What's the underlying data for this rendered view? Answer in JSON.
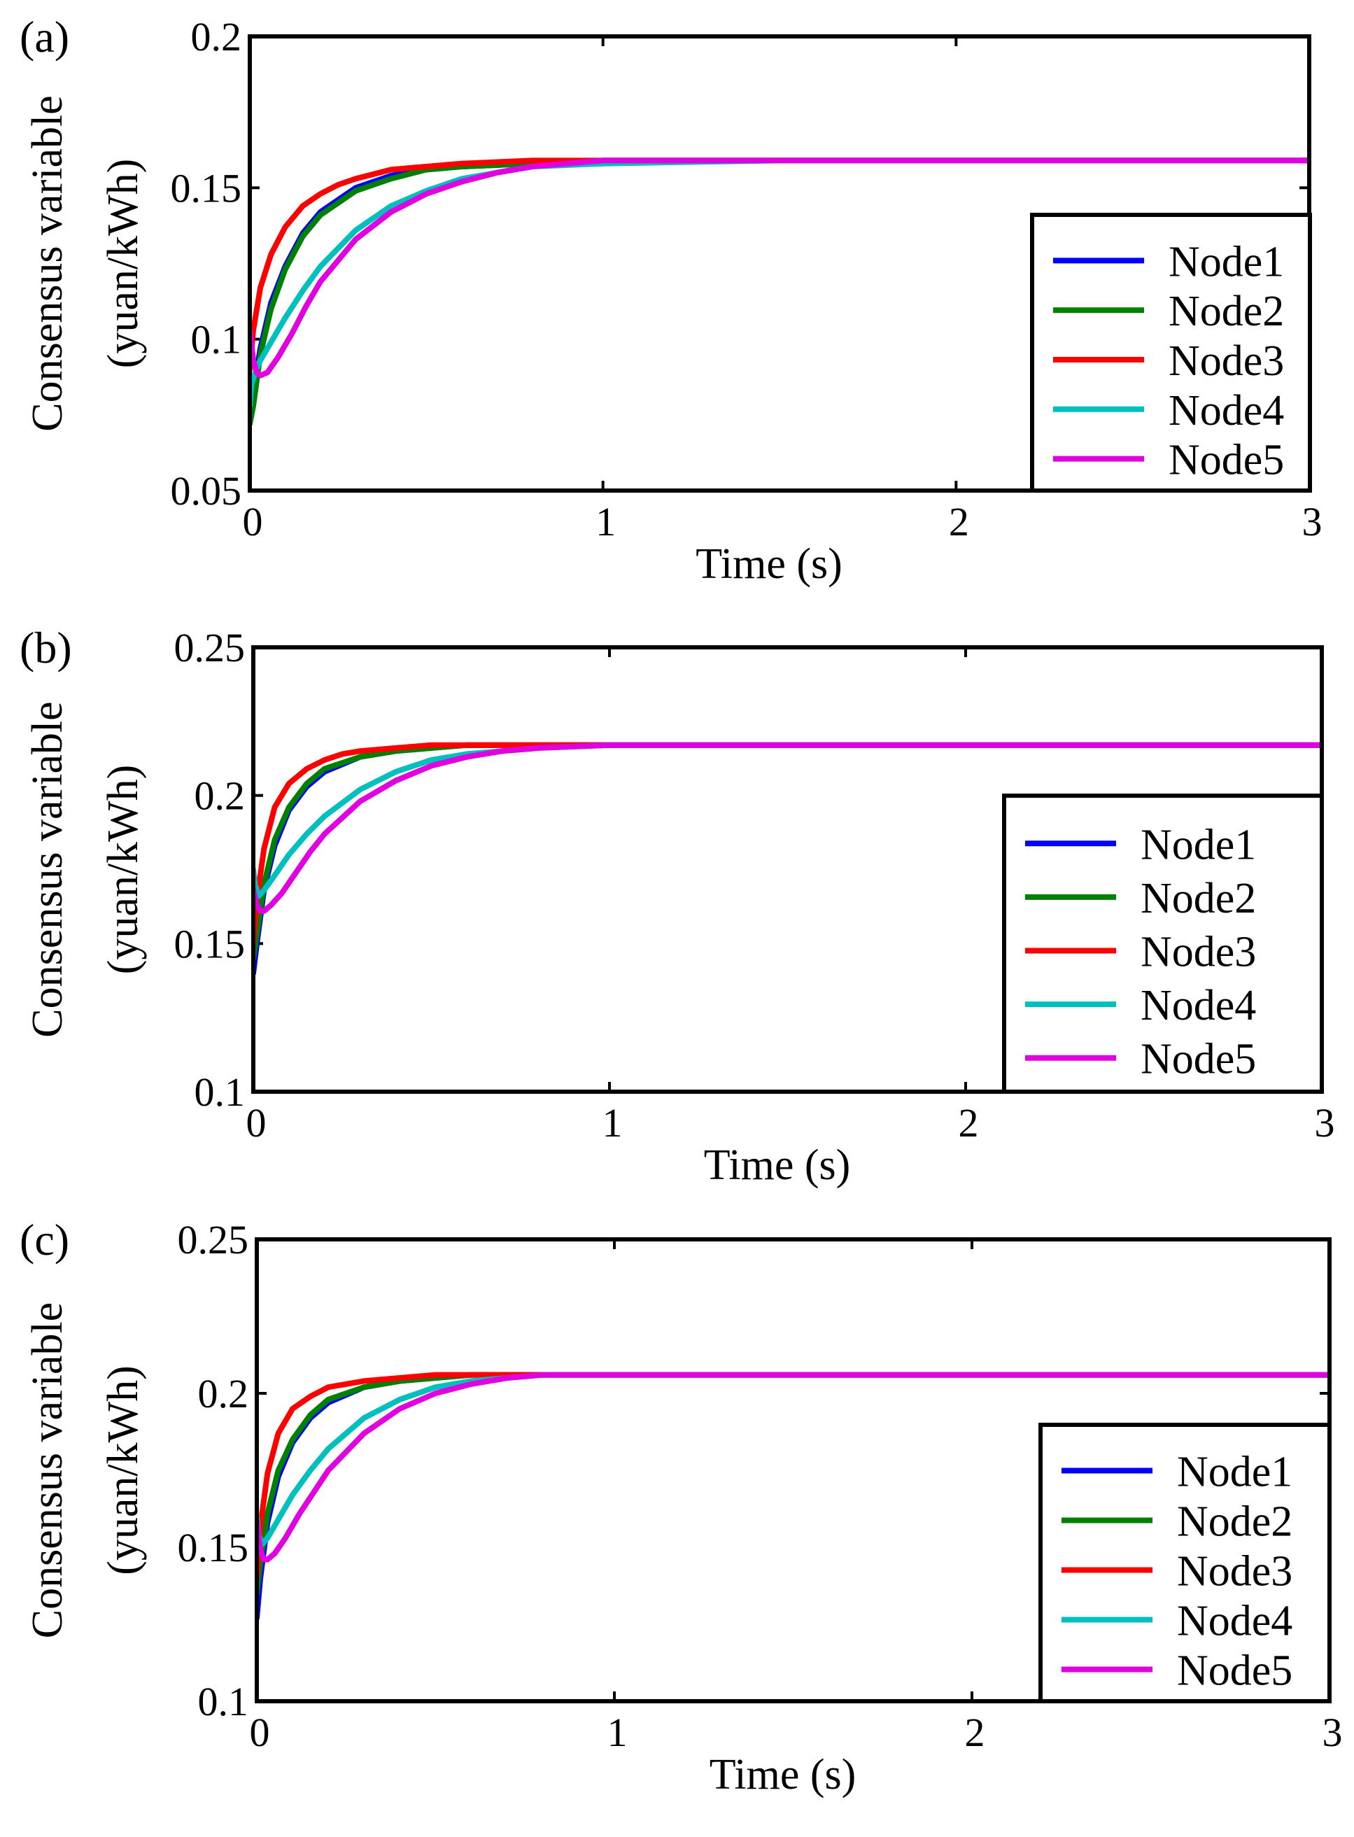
{
  "chart_data": [
    {
      "type": "line",
      "panel_label": "(a)",
      "xlabel": "Time (s)",
      "ylabel_lines": [
        "Consensus variable",
        "(yuan/kWh)"
      ],
      "xlim": [
        0,
        3
      ],
      "ylim": [
        0.05,
        0.2
      ],
      "xticks": [
        0,
        1,
        2,
        3
      ],
      "xtick_labels": [
        "0",
        "1",
        "2",
        "3"
      ],
      "yticks": [
        0.05,
        0.1,
        0.15,
        0.2
      ],
      "ytick_labels": [
        "0.05",
        "0.1",
        "0.15",
        "0.2"
      ],
      "legend_position": "lower-right",
      "series": [
        {
          "name": "Node1",
          "color": "#0000ff",
          "x": [
            0,
            0.01,
            0.03,
            0.06,
            0.1,
            0.15,
            0.2,
            0.3,
            0.4,
            0.5,
            0.6,
            0.8,
            1.0,
            1.5,
            2.0,
            2.5,
            3.0
          ],
          "y": [
            0.077,
            0.083,
            0.097,
            0.112,
            0.124,
            0.135,
            0.142,
            0.15,
            0.154,
            0.156,
            0.157,
            0.158,
            0.159,
            0.159,
            0.159,
            0.159,
            0.159
          ]
        },
        {
          "name": "Node2",
          "color": "#008000",
          "x": [
            0,
            0.01,
            0.03,
            0.06,
            0.1,
            0.15,
            0.2,
            0.3,
            0.4,
            0.5,
            0.6,
            0.8,
            1.0,
            1.5,
            2.0,
            2.5,
            3.0
          ],
          "y": [
            0.072,
            0.078,
            0.095,
            0.11,
            0.123,
            0.134,
            0.141,
            0.149,
            0.153,
            0.156,
            0.157,
            0.158,
            0.159,
            0.159,
            0.159,
            0.159,
            0.159
          ]
        },
        {
          "name": "Node3",
          "color": "#ff0000",
          "x": [
            0,
            0.01,
            0.03,
            0.06,
            0.1,
            0.15,
            0.2,
            0.25,
            0.3,
            0.4,
            0.5,
            0.6,
            0.8,
            1.0,
            1.5,
            2.0,
            2.5,
            3.0
          ],
          "y": [
            0.09,
            0.103,
            0.117,
            0.128,
            0.137,
            0.144,
            0.148,
            0.151,
            0.153,
            0.156,
            0.157,
            0.158,
            0.159,
            0.159,
            0.159,
            0.159,
            0.159,
            0.159
          ]
        },
        {
          "name": "Node4",
          "color": "#00bfbf",
          "x": [
            0,
            0.005,
            0.015,
            0.03,
            0.06,
            0.1,
            0.15,
            0.2,
            0.3,
            0.4,
            0.5,
            0.6,
            0.7,
            0.8,
            1.0,
            1.5,
            2.0,
            2.5,
            3.0
          ],
          "y": [
            0.078,
            0.085,
            0.089,
            0.093,
            0.099,
            0.107,
            0.116,
            0.124,
            0.136,
            0.144,
            0.149,
            0.153,
            0.155,
            0.157,
            0.158,
            0.159,
            0.159,
            0.159,
            0.159
          ]
        },
        {
          "name": "Node5",
          "color": "#e000e0",
          "x": [
            0,
            0.01,
            0.02,
            0.03,
            0.05,
            0.08,
            0.12,
            0.16,
            0.2,
            0.3,
            0.4,
            0.5,
            0.6,
            0.7,
            0.8,
            1.0,
            1.5,
            2.0,
            2.5,
            3.0
          ],
          "y": [
            0.103,
            0.093,
            0.089,
            0.088,
            0.089,
            0.094,
            0.102,
            0.111,
            0.119,
            0.133,
            0.142,
            0.148,
            0.152,
            0.155,
            0.157,
            0.159,
            0.159,
            0.159,
            0.159,
            0.159
          ]
        }
      ]
    },
    {
      "type": "line",
      "panel_label": "(b)",
      "xlabel": "Time (s)",
      "ylabel_lines": [
        "Consensus variable",
        "(yuan/kWh)"
      ],
      "xlim": [
        0,
        3
      ],
      "ylim": [
        0.1,
        0.25
      ],
      "xticks": [
        0,
        1,
        2,
        3
      ],
      "xtick_labels": [
        "0",
        "1",
        "2",
        "3"
      ],
      "yticks": [
        0.1,
        0.15,
        0.2,
        0.25
      ],
      "ytick_labels": [
        "0.1",
        "0.15",
        "0.2",
        "0.25"
      ],
      "legend_position": "lower-right",
      "series": [
        {
          "name": "Node1",
          "color": "#0000ff",
          "x": [
            0,
            0.01,
            0.03,
            0.06,
            0.1,
            0.15,
            0.2,
            0.3,
            0.4,
            0.5,
            0.6,
            0.8,
            1.0,
            1.5,
            2.0,
            2.5,
            3.0
          ],
          "y": [
            0.14,
            0.15,
            0.168,
            0.183,
            0.195,
            0.203,
            0.208,
            0.213,
            0.215,
            0.216,
            0.217,
            0.217,
            0.217,
            0.217,
            0.217,
            0.217,
            0.217
          ]
        },
        {
          "name": "Node2",
          "color": "#008000",
          "x": [
            0,
            0.01,
            0.03,
            0.06,
            0.1,
            0.15,
            0.2,
            0.3,
            0.4,
            0.5,
            0.6,
            0.8,
            1.0,
            1.5,
            2.0,
            2.5,
            3.0
          ],
          "y": [
            0.145,
            0.153,
            0.17,
            0.185,
            0.196,
            0.204,
            0.209,
            0.213,
            0.215,
            0.216,
            0.217,
            0.217,
            0.217,
            0.217,
            0.217,
            0.217,
            0.217
          ]
        },
        {
          "name": "Node3",
          "color": "#ff0000",
          "x": [
            0,
            0.01,
            0.03,
            0.06,
            0.1,
            0.15,
            0.2,
            0.25,
            0.3,
            0.4,
            0.5,
            0.6,
            0.8,
            1.0,
            1.5,
            2.0,
            2.5,
            3.0
          ],
          "y": [
            0.15,
            0.165,
            0.182,
            0.196,
            0.204,
            0.209,
            0.212,
            0.214,
            0.215,
            0.216,
            0.217,
            0.217,
            0.217,
            0.217,
            0.217,
            0.217,
            0.217,
            0.217
          ]
        },
        {
          "name": "Node4",
          "color": "#00bfbf",
          "x": [
            0,
            0.005,
            0.015,
            0.03,
            0.06,
            0.1,
            0.15,
            0.2,
            0.3,
            0.4,
            0.5,
            0.6,
            0.7,
            0.8,
            1.0,
            1.5,
            2.0,
            2.5,
            3.0
          ],
          "y": [
            0.175,
            0.17,
            0.166,
            0.168,
            0.173,
            0.18,
            0.187,
            0.193,
            0.202,
            0.208,
            0.212,
            0.214,
            0.215,
            0.216,
            0.217,
            0.217,
            0.217,
            0.217,
            0.217
          ]
        },
        {
          "name": "Node5",
          "color": "#e000e0",
          "x": [
            0,
            0.01,
            0.02,
            0.03,
            0.05,
            0.08,
            0.12,
            0.16,
            0.2,
            0.3,
            0.4,
            0.5,
            0.6,
            0.7,
            0.8,
            1.0,
            1.5,
            2.0,
            2.5,
            3.0
          ],
          "y": [
            0.168,
            0.163,
            0.161,
            0.161,
            0.163,
            0.167,
            0.174,
            0.181,
            0.187,
            0.198,
            0.205,
            0.21,
            0.213,
            0.215,
            0.216,
            0.217,
            0.217,
            0.217,
            0.217,
            0.217
          ]
        }
      ]
    },
    {
      "type": "line",
      "panel_label": "(c)",
      "xlabel": "Time (s)",
      "ylabel_lines": [
        "Consensus variable",
        "(yuan/kWh)"
      ],
      "xlim": [
        0,
        3
      ],
      "ylim": [
        0.1,
        0.25
      ],
      "xticks": [
        0,
        1,
        2,
        3
      ],
      "xtick_labels": [
        "0",
        "1",
        "2",
        "3"
      ],
      "yticks": [
        0.1,
        0.15,
        0.2,
        0.25
      ],
      "ytick_labels": [
        "0.1",
        "0.15",
        "0.2",
        "0.25"
      ],
      "legend_position": "lower-right",
      "series": [
        {
          "name": "Node1",
          "color": "#0000ff",
          "x": [
            0,
            0.01,
            0.03,
            0.06,
            0.1,
            0.15,
            0.2,
            0.3,
            0.4,
            0.5,
            0.6,
            0.8,
            1.0,
            1.5,
            2.0,
            2.5,
            3.0
          ],
          "y": [
            0.127,
            0.14,
            0.158,
            0.173,
            0.184,
            0.192,
            0.197,
            0.202,
            0.204,
            0.205,
            0.206,
            0.206,
            0.206,
            0.206,
            0.206,
            0.206,
            0.206
          ]
        },
        {
          "name": "Node2",
          "color": "#008000",
          "x": [
            0,
            0.01,
            0.03,
            0.06,
            0.1,
            0.15,
            0.2,
            0.3,
            0.4,
            0.5,
            0.6,
            0.8,
            1.0,
            1.5,
            2.0,
            2.5,
            3.0
          ],
          "y": [
            0.135,
            0.145,
            0.161,
            0.175,
            0.185,
            0.193,
            0.198,
            0.202,
            0.204,
            0.205,
            0.206,
            0.206,
            0.206,
            0.206,
            0.206,
            0.206,
            0.206
          ]
        },
        {
          "name": "Node3",
          "color": "#ff0000",
          "x": [
            0,
            0.01,
            0.03,
            0.06,
            0.1,
            0.15,
            0.2,
            0.25,
            0.3,
            0.4,
            0.5,
            0.6,
            0.8,
            1.0,
            1.5,
            2.0,
            2.5,
            3.0
          ],
          "y": [
            0.14,
            0.157,
            0.174,
            0.187,
            0.195,
            0.199,
            0.202,
            0.203,
            0.204,
            0.205,
            0.206,
            0.206,
            0.206,
            0.206,
            0.206,
            0.206,
            0.206,
            0.206
          ]
        },
        {
          "name": "Node4",
          "color": "#00bfbf",
          "x": [
            0,
            0.005,
            0.015,
            0.03,
            0.06,
            0.1,
            0.15,
            0.2,
            0.3,
            0.4,
            0.5,
            0.6,
            0.7,
            0.8,
            1.0,
            1.5,
            2.0,
            2.5,
            3.0
          ],
          "y": [
            0.16,
            0.154,
            0.151,
            0.153,
            0.159,
            0.167,
            0.175,
            0.182,
            0.192,
            0.198,
            0.202,
            0.204,
            0.205,
            0.206,
            0.206,
            0.206,
            0.206,
            0.206,
            0.206
          ]
        },
        {
          "name": "Node5",
          "color": "#e000e0",
          "x": [
            0,
            0.01,
            0.02,
            0.03,
            0.05,
            0.08,
            0.12,
            0.16,
            0.2,
            0.3,
            0.4,
            0.5,
            0.6,
            0.7,
            0.8,
            1.0,
            1.5,
            2.0,
            2.5,
            3.0
          ],
          "y": [
            0.158,
            0.149,
            0.146,
            0.146,
            0.148,
            0.153,
            0.161,
            0.168,
            0.175,
            0.187,
            0.195,
            0.2,
            0.203,
            0.205,
            0.206,
            0.206,
            0.206,
            0.206,
            0.206,
            0.206
          ]
        }
      ]
    }
  ]
}
